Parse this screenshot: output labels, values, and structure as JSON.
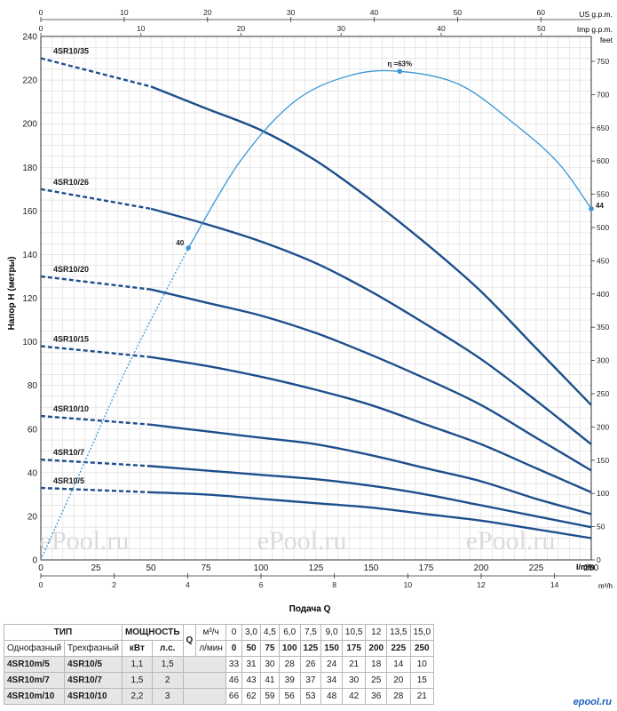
{
  "chart_data": {
    "type": "line",
    "ylabel": "Напор H (метры)",
    "xlabel": "Подача Q",
    "x_unit_bottom": "l/min",
    "x_unit_m3h": "m³/h",
    "y_unit_right": "feet",
    "top_unit_us": "US g.p.m.",
    "top_unit_imp": "Imp g.p.m.",
    "xlim": [
      0,
      250
    ],
    "ylim": [
      0,
      240
    ],
    "x_ticks": [
      0,
      25,
      50,
      75,
      100,
      125,
      150,
      175,
      200,
      225,
      250
    ],
    "y_ticks": [
      0,
      20,
      40,
      60,
      80,
      100,
      120,
      140,
      160,
      180,
      200,
      220,
      240
    ],
    "m3h_ticks": [
      0,
      2,
      4,
      6,
      8,
      10,
      12,
      14
    ],
    "us_gpm_ticks": [
      0,
      10,
      20,
      30,
      40,
      50,
      60
    ],
    "imp_gpm_ticks": [
      0,
      10,
      20,
      30,
      40,
      50
    ],
    "feet_ticks": [
      0,
      50,
      100,
      150,
      200,
      250,
      300,
      350,
      400,
      450,
      500,
      550,
      600,
      650,
      700,
      750
    ],
    "grid": true,
    "series": [
      {
        "name": "4SR10/35",
        "x": [
          0,
          50,
          75,
          100,
          125,
          150,
          175,
          200,
          225,
          250
        ],
        "y": [
          230,
          217,
          207,
          197,
          183,
          165,
          145,
          123,
          97,
          71
        ]
      },
      {
        "name": "4SR10/26",
        "x": [
          0,
          50,
          75,
          100,
          125,
          150,
          175,
          200,
          225,
          250
        ],
        "y": [
          170,
          161,
          154,
          146,
          136,
          123,
          108,
          92,
          73,
          53
        ]
      },
      {
        "name": "4SR10/20",
        "x": [
          0,
          50,
          75,
          100,
          125,
          150,
          175,
          200,
          225,
          250
        ],
        "y": [
          130,
          124,
          118,
          112,
          104,
          94,
          83,
          71,
          56,
          41
        ]
      },
      {
        "name": "4SR10/15",
        "x": [
          0,
          50,
          75,
          100,
          125,
          150,
          175,
          200,
          225,
          250
        ],
        "y": [
          98,
          93,
          89,
          84,
          78,
          71,
          62,
          53,
          42,
          31
        ]
      },
      {
        "name": "4SR10/10",
        "x": [
          0,
          50,
          75,
          100,
          125,
          150,
          175,
          200,
          225,
          250
        ],
        "y": [
          66,
          62,
          59,
          56,
          53,
          48,
          42,
          36,
          28,
          21
        ]
      },
      {
        "name": "4SR10/7",
        "x": [
          0,
          50,
          75,
          100,
          125,
          150,
          175,
          200,
          225,
          250
        ],
        "y": [
          46,
          43,
          41,
          39,
          37,
          34,
          30,
          25,
          20,
          15
        ]
      },
      {
        "name": "4SR10/5",
        "x": [
          0,
          50,
          75,
          100,
          125,
          150,
          175,
          200,
          225,
          250
        ],
        "y": [
          33,
          31,
          30,
          28,
          26,
          24,
          21,
          18,
          14,
          10
        ]
      }
    ],
    "efficiency": {
      "x": [
        0,
        20,
        40,
        67,
        90,
        115,
        140,
        163,
        190,
        215,
        235,
        250
      ],
      "y": [
        0,
        45,
        90,
        143,
        182,
        210,
        222,
        224,
        218,
        200,
        182,
        161
      ],
      "labels": [
        {
          "text": "40",
          "x": 67,
          "y": 143
        },
        {
          "text": "η =63%",
          "x": 163,
          "y": 224
        },
        {
          "text": "44",
          "x": 250,
          "y": 161
        }
      ]
    }
  },
  "watermarks": [
    "ePool.ru",
    "ePool.ru",
    "ePool.ru"
  ],
  "table": {
    "type_header": "ТИП",
    "power_header": "МОЩНОСТЬ",
    "q_header": "Q",
    "single_phase": "Однофазный",
    "three_phase": "Трехфазный",
    "kw": "кВт",
    "hp": "л.с.",
    "m3h_label": "м³/ч",
    "lmin_label": "л/мин",
    "m3h": [
      "0",
      "3,0",
      "4,5",
      "6,0",
      "7,5",
      "9,0",
      "10,5",
      "12",
      "13,5",
      "15,0"
    ],
    "lmin": [
      "0",
      "50",
      "75",
      "100",
      "125",
      "150",
      "175",
      "200",
      "225",
      "250"
    ],
    "rows": [
      {
        "single": "4SR10m/5",
        "three": "4SR10/5",
        "kw": "1,1",
        "hp": "1,5",
        "h": [
          "33",
          "31",
          "30",
          "28",
          "26",
          "24",
          "21",
          "18",
          "14",
          "10"
        ]
      },
      {
        "single": "4SR10m/7",
        "three": "4SR10/7",
        "kw": "1,5",
        "hp": "2",
        "h": [
          "46",
          "43",
          "41",
          "39",
          "37",
          "34",
          "30",
          "25",
          "20",
          "15"
        ]
      },
      {
        "single": "4SR10m/10",
        "three": "4SR10/10",
        "kw": "2,2",
        "hp": "3",
        "h": [
          "66",
          "62",
          "59",
          "56",
          "53",
          "48",
          "42",
          "36",
          "28",
          "21"
        ]
      }
    ]
  },
  "logo_text": "epool.ru"
}
